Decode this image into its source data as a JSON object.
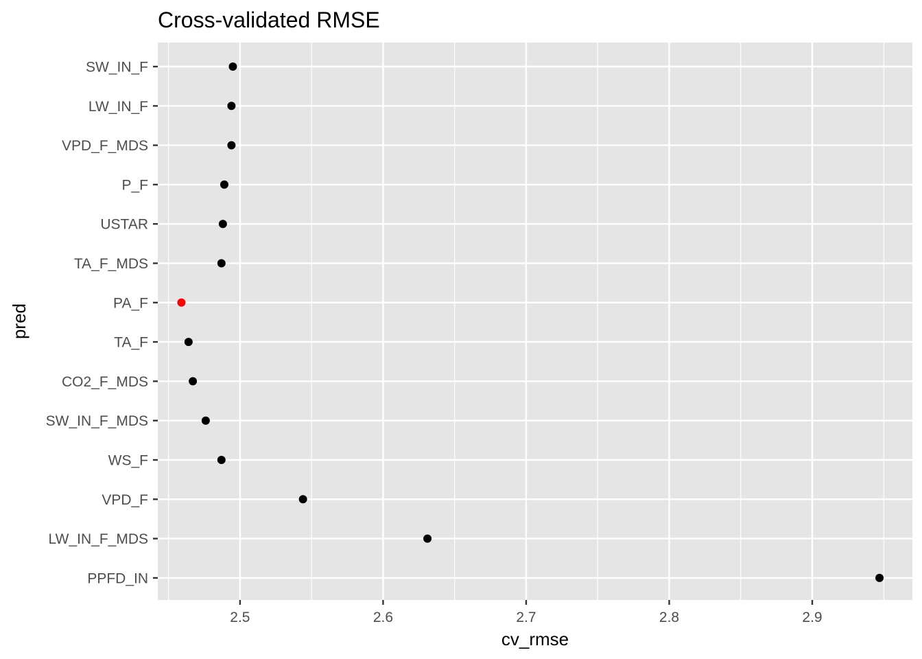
{
  "chart_data": {
    "type": "scatter",
    "title": "Cross-validated RMSE",
    "xlabel": "cv_rmse",
    "ylabel": "pred",
    "xlim": [
      2.4425,
      2.97
    ],
    "xticks": [
      2.5,
      2.6,
      2.7,
      2.8,
      2.9
    ],
    "xtick_labels": [
      "2.5",
      "2.6",
      "2.7",
      "2.8",
      "2.9"
    ],
    "grid": true,
    "legend": "none",
    "categories": [
      "SW_IN_F",
      "LW_IN_F",
      "VPD_F_MDS",
      "P_F",
      "USTAR",
      "TA_F_MDS",
      "PA_F",
      "TA_F",
      "CO2_F_MDS",
      "SW_IN_F_MDS",
      "WS_F",
      "VPD_F",
      "LW_IN_F_MDS",
      "PPFD_IN"
    ],
    "values": [
      2.495,
      2.494,
      2.494,
      2.489,
      2.488,
      2.487,
      2.459,
      2.464,
      2.467,
      2.476,
      2.487,
      2.544,
      2.631,
      2.947
    ],
    "highlight_category": "PA_F",
    "colors": {
      "panel": "#e5e5e5",
      "grid": "#ffffff",
      "point": "#000000",
      "highlight": "#ff0000",
      "tick": "#333333"
    }
  }
}
